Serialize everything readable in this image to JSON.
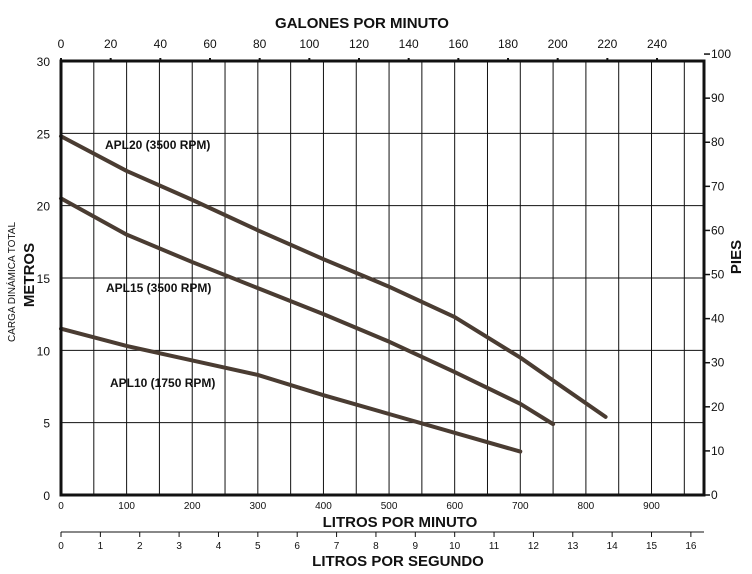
{
  "chart_data": {
    "type": "line",
    "title": "GALONES POR MINUTO",
    "xlabel": "LITROS POR MINUTO",
    "x2label": "LITROS POR SEGUNDO",
    "ylabel": "METROS",
    "ylabel_sub": "CARGA DINÁMICA TOTAL",
    "y2label": "PIES",
    "xlim": [
      0,
      980
    ],
    "ylim": [
      0,
      30
    ],
    "grid": true,
    "x_ticks": [
      "0",
      "100",
      "200",
      "300",
      "400",
      "500",
      "600",
      "700",
      "800",
      "900"
    ],
    "x_top_ticks": [
      "0",
      "20",
      "40",
      "60",
      "80",
      "100",
      "120",
      "140",
      "160",
      "180",
      "200",
      "220",
      "240"
    ],
    "x_lps_ticks": [
      "0",
      "1",
      "2",
      "3",
      "4",
      "5",
      "6",
      "7",
      "8",
      "9",
      "10",
      "11",
      "12",
      "13",
      "14",
      "15",
      "16"
    ],
    "y_ticks": [
      "0",
      "5",
      "10",
      "15",
      "20",
      "25",
      "30"
    ],
    "y_right_ticks": [
      "0",
      "10",
      "20",
      "30",
      "40",
      "50",
      "60",
      "70",
      "80",
      "90",
      "100"
    ],
    "series": [
      {
        "name": "APL20 (3500 RPM)",
        "x": [
          0,
          100,
          200,
          300,
          400,
          500,
          600,
          700,
          760,
          830
        ],
        "y": [
          24.8,
          22.4,
          20.4,
          18.3,
          16.3,
          14.4,
          12.3,
          9.5,
          7.6,
          5.4
        ]
      },
      {
        "name": "APL15 (3500 RPM)",
        "x": [
          0,
          100,
          200,
          300,
          400,
          500,
          600,
          700,
          750
        ],
        "y": [
          20.5,
          18.0,
          16.1,
          14.3,
          12.5,
          10.6,
          8.5,
          6.3,
          4.9
        ]
      },
      {
        "name": "APL10 (1750 RPM)",
        "x": [
          0,
          100,
          200,
          300,
          400,
          500,
          600,
          700
        ],
        "y": [
          11.5,
          10.3,
          9.3,
          8.3,
          6.9,
          5.6,
          4.3,
          3.0
        ]
      }
    ]
  }
}
